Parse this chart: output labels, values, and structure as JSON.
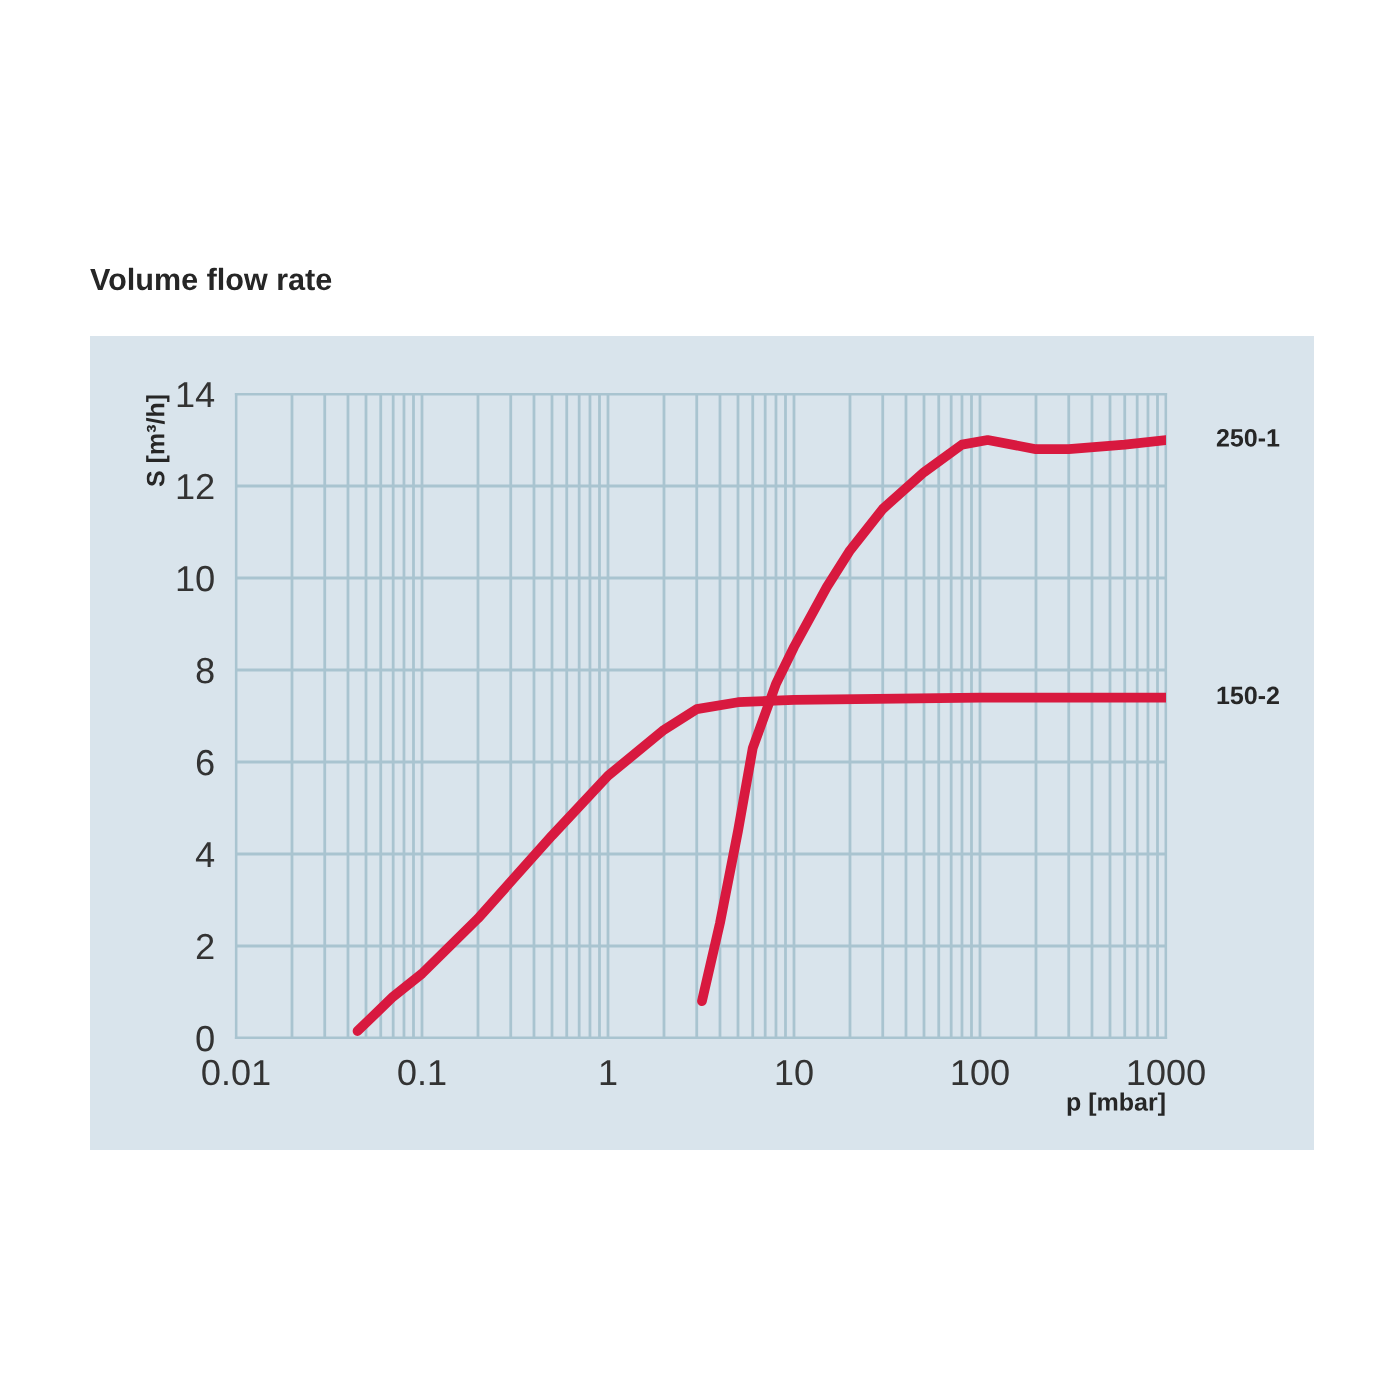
{
  "chart_data": {
    "type": "line",
    "title": "Volume flow rate",
    "xlabel": "p [mbar]",
    "ylabel": "S [m³/h]",
    "log": "x",
    "grid": true,
    "legend": false,
    "marker": "none",
    "line_style": "solid",
    "xlim": [
      0.01,
      1000
    ],
    "xticks": [
      0.01,
      0.1,
      1,
      10,
      100,
      1000
    ],
    "ylim": [
      0,
      14
    ],
    "yticks": [
      0,
      2,
      4,
      6,
      8,
      10,
      12,
      14
    ],
    "series": [
      {
        "name": "250-1",
        "color": "#d8193f",
        "x": [
          3.2,
          4,
          5,
          6,
          8,
          10,
          15,
          20,
          30,
          50,
          80,
          110,
          200,
          300,
          600,
          1000
        ],
        "values": [
          0.8,
          2.5,
          4.5,
          6.3,
          7.7,
          8.5,
          9.8,
          10.6,
          11.5,
          12.3,
          12.9,
          13.0,
          12.8,
          12.8,
          12.9,
          13.0
        ]
      },
      {
        "name": "150-2",
        "color": "#d8193f",
        "x": [
          0.045,
          0.07,
          0.1,
          0.2,
          0.5,
          1,
          2,
          3,
          5,
          10,
          100,
          1000
        ],
        "values": [
          0.15,
          0.9,
          1.4,
          2.6,
          4.4,
          5.7,
          6.7,
          7.15,
          7.3,
          7.35,
          7.4,
          7.4
        ]
      }
    ]
  }
}
